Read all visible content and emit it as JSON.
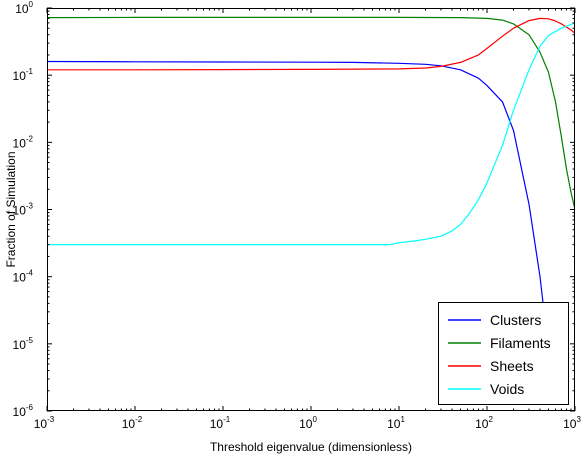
{
  "chart_data": {
    "type": "line",
    "title": "",
    "xlabel": "Threshold eigenvalue (dimensionless)",
    "ylabel": "Fraction of Simulation",
    "xscale": "log",
    "yscale": "log",
    "xlim": [
      0.001,
      1000
    ],
    "ylim": [
      1e-06,
      1
    ],
    "grid": false,
    "legend_position": "bottom-right",
    "x_ticks": [
      {
        "base": "10",
        "exp": "-3",
        "value": 0.001
      },
      {
        "base": "10",
        "exp": "-2",
        "value": 0.01
      },
      {
        "base": "10",
        "exp": "-1",
        "value": 0.1
      },
      {
        "base": "10",
        "exp": "0",
        "value": 1
      },
      {
        "base": "10",
        "exp": "1",
        "value": 10
      },
      {
        "base": "10",
        "exp": "2",
        "value": 100
      },
      {
        "base": "10",
        "exp": "3",
        "value": 1000
      }
    ],
    "y_ticks": [
      {
        "base": "10",
        "exp": "-6",
        "value": 1e-06
      },
      {
        "base": "10",
        "exp": "-5",
        "value": 1e-05
      },
      {
        "base": "10",
        "exp": "-4",
        "value": 0.0001
      },
      {
        "base": "10",
        "exp": "-3",
        "value": 0.001
      },
      {
        "base": "10",
        "exp": "-2",
        "value": 0.01
      },
      {
        "base": "10",
        "exp": "-1",
        "value": 0.1
      },
      {
        "base": "10",
        "exp": "0",
        "value": 1
      }
    ],
    "series": [
      {
        "name": "Clusters",
        "color": "#0000ff",
        "x": [
          0.001,
          0.01,
          0.1,
          1,
          3,
          10,
          20,
          30,
          50,
          80,
          100,
          150,
          200,
          300,
          400,
          500
        ],
        "y": [
          0.16,
          0.158,
          0.157,
          0.156,
          0.155,
          0.15,
          0.145,
          0.138,
          0.12,
          0.09,
          0.07,
          0.04,
          0.015,
          0.0012,
          0.0001,
          8e-06
        ]
      },
      {
        "name": "Filaments",
        "color": "#008000",
        "x": [
          0.001,
          0.01,
          0.1,
          1,
          10,
          50,
          100,
          150,
          200,
          300,
          400,
          500,
          600,
          700,
          800,
          900,
          1000
        ],
        "y": [
          0.72,
          0.725,
          0.725,
          0.725,
          0.725,
          0.72,
          0.7,
          0.66,
          0.58,
          0.4,
          0.22,
          0.11,
          0.04,
          0.012,
          0.004,
          0.0018,
          0.001
        ]
      },
      {
        "name": "Sheets",
        "color": "#ff0000",
        "x": [
          0.001,
          0.01,
          0.1,
          1,
          10,
          20,
          30,
          50,
          80,
          100,
          150,
          200,
          300,
          400,
          500,
          600,
          700,
          800,
          900,
          1000
        ],
        "y": [
          0.12,
          0.12,
          0.121,
          0.122,
          0.124,
          0.128,
          0.135,
          0.155,
          0.2,
          0.25,
          0.38,
          0.5,
          0.65,
          0.7,
          0.69,
          0.64,
          0.58,
          0.52,
          0.47,
          0.42
        ]
      },
      {
        "name": "Voids",
        "color": "#00ffff",
        "x": [
          0.001,
          0.01,
          0.1,
          1,
          5,
          8,
          10,
          15,
          20,
          30,
          40,
          50,
          60,
          80,
          100,
          150,
          200,
          300,
          400,
          500,
          700,
          1000
        ],
        "y": [
          0.0003,
          0.0003,
          0.0003,
          0.0003,
          0.0003,
          0.0003,
          0.00032,
          0.00034,
          0.00036,
          0.0004,
          0.00048,
          0.0006,
          0.0008,
          0.0014,
          0.0025,
          0.009,
          0.03,
          0.12,
          0.27,
          0.39,
          0.5,
          0.6
        ]
      }
    ]
  }
}
